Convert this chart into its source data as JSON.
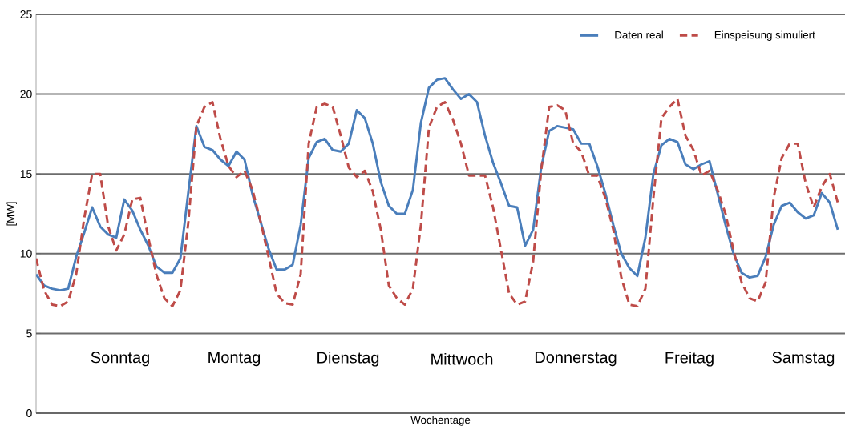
{
  "chart_data": {
    "type": "line",
    "xlabel": "Wochentage",
    "ylabel": "[MW]",
    "ylim": [
      0,
      25
    ],
    "yticks": [
      0,
      5,
      10,
      15,
      20,
      25
    ],
    "grid": "y",
    "legend": "top right",
    "categories": [
      null,
      null,
      null,
      null,
      null,
      null,
      null,
      null,
      null,
      null,
      null,
      null,
      null,
      null,
      null,
      null,
      null,
      null,
      null,
      null,
      null,
      null,
      null,
      null,
      null,
      null,
      null,
      null,
      null,
      null,
      null,
      null,
      null,
      null,
      null,
      null,
      null,
      null,
      null,
      null,
      null,
      null,
      null,
      null,
      null,
      null,
      null,
      null,
      null,
      null,
      null,
      null,
      null,
      null,
      null,
      null,
      null,
      null,
      null,
      null,
      null,
      null,
      null,
      null,
      null,
      null,
      null,
      null,
      null,
      null,
      null,
      null,
      null,
      null,
      null,
      null,
      null,
      null,
      null,
      null,
      null,
      null,
      null,
      null,
      null,
      null,
      null,
      null,
      null,
      null,
      null,
      null,
      null,
      null,
      null,
      null,
      null,
      null,
      null,
      null,
      null
    ],
    "series": [
      {
        "name": "Daten real",
        "color": "#4a7ebb",
        "line_style": "solid",
        "values": [
          8.7,
          8.0,
          7.8,
          7.7,
          7.8,
          9.8,
          11.3,
          12.9,
          11.7,
          11.2,
          11.0,
          13.4,
          12.7,
          11.5,
          10.5,
          9.2,
          8.8,
          8.8,
          9.7,
          13.9,
          18.0,
          16.7,
          16.5,
          15.9,
          15.5,
          16.4,
          15.9,
          13.7,
          12.0,
          10.3,
          9.0,
          9.0,
          9.3,
          11.8,
          16.0,
          17.0,
          17.2,
          16.5,
          16.4,
          16.9,
          19.0,
          18.5,
          16.9,
          14.5,
          13.0,
          12.5,
          12.5,
          14.0,
          18.2,
          20.4,
          20.9,
          21.0,
          20.3,
          19.7,
          20.0,
          19.5,
          17.4,
          15.7,
          14.4,
          13.0,
          12.9,
          10.5,
          11.5,
          15.4,
          17.7,
          18.0,
          17.9,
          17.8,
          16.9,
          16.9,
          15.5,
          13.8,
          11.8,
          10.0,
          9.1,
          8.6,
          11.0,
          15.0,
          16.8,
          17.2,
          17.0,
          15.6,
          15.3,
          15.6,
          15.8,
          13.8,
          11.8,
          10.0,
          8.8,
          8.5,
          8.6,
          9.8,
          11.8,
          13.0,
          13.2,
          12.6,
          12.2,
          12.4,
          13.8,
          13.2,
          11.5
        ]
      },
      {
        "name": "Einspeisung simuliert",
        "color": "#be4b48",
        "line_style": "dashed",
        "values": [
          9.7,
          7.7,
          6.8,
          6.7,
          7.0,
          8.7,
          12.2,
          15.0,
          15.0,
          11.7,
          10.2,
          11.2,
          13.4,
          13.5,
          11.0,
          8.7,
          7.2,
          6.7,
          7.7,
          12.0,
          18.0,
          19.2,
          19.5,
          17.2,
          15.5,
          14.8,
          15.2,
          14.0,
          12.0,
          9.8,
          7.5,
          6.9,
          6.8,
          8.7,
          16.9,
          19.2,
          19.4,
          19.2,
          17.4,
          15.4,
          14.8,
          15.2,
          13.9,
          11.5,
          8.0,
          7.2,
          6.8,
          7.8,
          11.8,
          17.9,
          19.2,
          19.5,
          18.4,
          16.9,
          14.9,
          14.9,
          14.9,
          12.9,
          10.2,
          7.5,
          6.8,
          7.0,
          9.5,
          15.2,
          19.2,
          19.3,
          19.0,
          16.9,
          16.4,
          14.9,
          14.9,
          13.5,
          11.5,
          8.5,
          6.8,
          6.7,
          7.8,
          13.5,
          18.5,
          19.2,
          19.7,
          17.4,
          16.5,
          14.9,
          15.2,
          14.0,
          12.5,
          10.2,
          8.2,
          7.2,
          7.0,
          8.2,
          13.5,
          16.0,
          16.9,
          16.9,
          14.4,
          12.9,
          14.2,
          15.0,
          13.2
        ]
      }
    ],
    "annotations": [
      "Sonntag",
      "Montag",
      "Dienstag",
      "Mittwoch",
      "Donnerstag",
      "Freitag",
      "Samstag"
    ]
  }
}
